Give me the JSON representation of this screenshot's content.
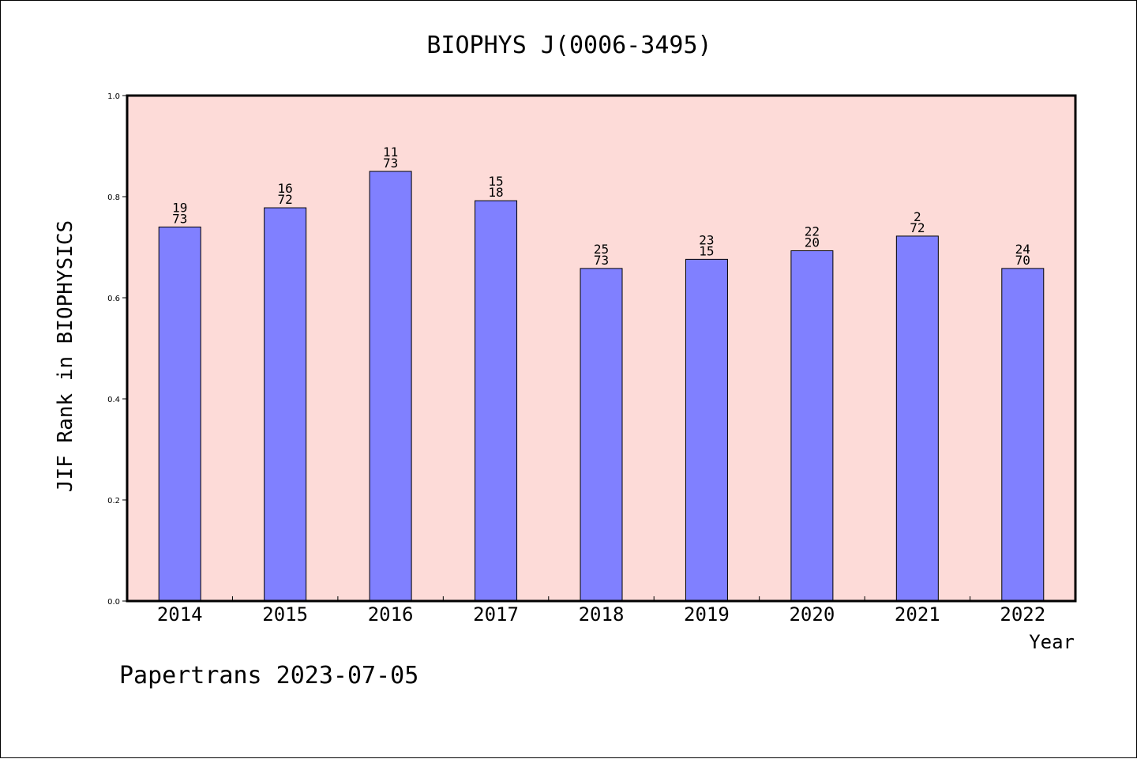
{
  "chart_data": {
    "type": "bar",
    "title": "BIOPHYS J(0006-3495)",
    "xlabel": "Year",
    "ylabel": "JIF Rank in BIOPHYSICS",
    "categories": [
      "2014",
      "2015",
      "2016",
      "2017",
      "2018",
      "2019",
      "2020",
      "2021",
      "2022"
    ],
    "values": [
      0.74,
      0.778,
      0.85,
      0.792,
      0.658,
      0.676,
      0.693,
      0.722,
      0.658
    ],
    "labels": [
      [
        "19",
        "73"
      ],
      [
        "16",
        "72"
      ],
      [
        "11",
        "73"
      ],
      [
        "15",
        "18"
      ],
      [
        "25",
        "73"
      ],
      [
        "23",
        "15"
      ],
      [
        "22",
        "20"
      ],
      [
        "2",
        "72"
      ],
      [
        "24",
        "70"
      ]
    ],
    "ylim": [
      0,
      1.0
    ],
    "yticks": [
      "0.0",
      "0.2",
      "0.4",
      "0.6",
      "0.8",
      "1.0"
    ],
    "grid": false,
    "colors": {
      "plot_background": "#fddbd8",
      "bar_fill": "#8080ff",
      "bar_stroke": "#000000"
    }
  },
  "footer": "Papertrans 2023-07-05"
}
